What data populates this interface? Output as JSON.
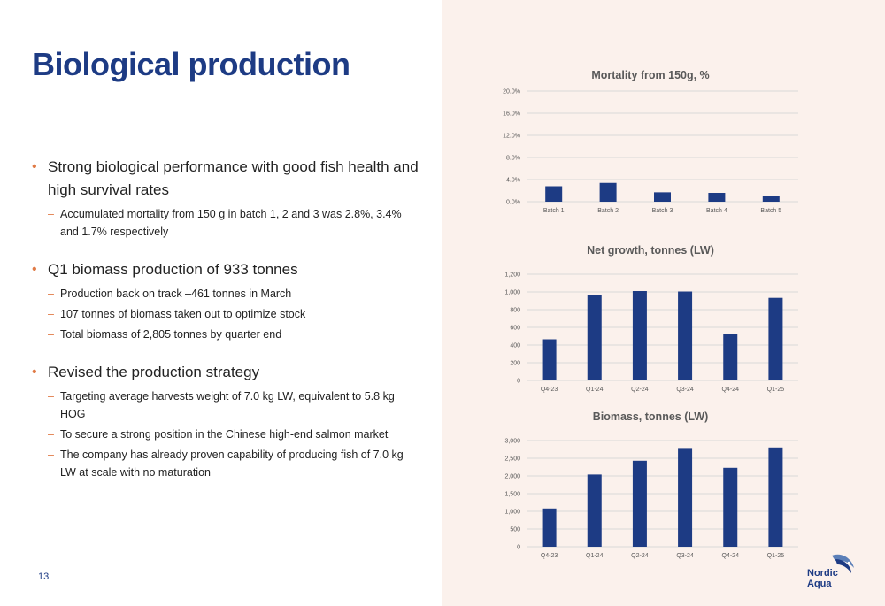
{
  "page": {
    "title": "Biological production",
    "page_number": "13"
  },
  "bullets": [
    {
      "text": "Strong biological performance with good fish health and high survival rates",
      "subs": [
        "Accumulated mortality from 150 g in batch 1, 2 and 3 was 2.8%, 3.4% and 1.7% respectively"
      ]
    },
    {
      "text": "Q1 biomass production of 933 tonnes",
      "subs": [
        "Production back on track –461 tonnes in March",
        "107 tonnes of biomass taken out to optimize stock",
        "Total biomass of 2,805 tonnes by quarter end"
      ]
    },
    {
      "text": "Revised the production strategy",
      "subs": [
        "Targeting average harvests weight of 7.0 kg LW, equivalent to 5.8 kg HOG",
        "To secure a strong position in the Chinese high-end salmon market",
        "The company has already proven capability of producing fish of 7.0 kg LW at scale with no maturation"
      ]
    }
  ],
  "logo": {
    "line1": "Nordic",
    "line2": "Aqua",
    "icon": "salmon-logo-icon"
  },
  "colors": {
    "title": "#1d3b84",
    "bar": "#1d3b84",
    "bullet_marker": "#e07a45",
    "panel_bg": "#fbf1ec"
  },
  "chart_data": [
    {
      "type": "bar",
      "title": "Mortality from 150g, %",
      "categories": [
        "Batch 1",
        "Batch 2",
        "Batch 3",
        "Batch 4",
        "Batch 5"
      ],
      "values": [
        2.8,
        3.4,
        1.7,
        1.6,
        1.1
      ],
      "ylim": [
        0,
        20
      ],
      "yticks": [
        0,
        4,
        8,
        12,
        16,
        20
      ],
      "ytick_labels": [
        "0.0%",
        "4.0%",
        "8.0%",
        "12.0%",
        "16.0%",
        "20.0%"
      ],
      "grid": true
    },
    {
      "type": "bar",
      "title": "Net growth, tonnes (LW)",
      "categories": [
        "Q4-23",
        "Q1-24",
        "Q2-24",
        "Q3-24",
        "Q4-24",
        "Q1-25"
      ],
      "values": [
        465,
        970,
        1010,
        1005,
        525,
        933
      ],
      "ylim": [
        0,
        1200
      ],
      "yticks": [
        0,
        200,
        400,
        600,
        800,
        1000,
        1200
      ],
      "ytick_labels": [
        "0",
        "200",
        "400",
        "600",
        "800",
        "1,000",
        "1,200"
      ],
      "grid": true
    },
    {
      "type": "bar",
      "title": "Biomass, tonnes (LW)",
      "categories": [
        "Q4-23",
        "Q1-24",
        "Q2-24",
        "Q3-24",
        "Q4-24",
        "Q1-25"
      ],
      "values": [
        1080,
        2040,
        2430,
        2790,
        2230,
        2805
      ],
      "ylim": [
        0,
        3000
      ],
      "yticks": [
        0,
        500,
        1000,
        1500,
        2000,
        2500,
        3000
      ],
      "ytick_labels": [
        "0",
        "500",
        "1,000",
        "1,500",
        "2,000",
        "2,500",
        "3,000"
      ],
      "grid": true
    }
  ]
}
